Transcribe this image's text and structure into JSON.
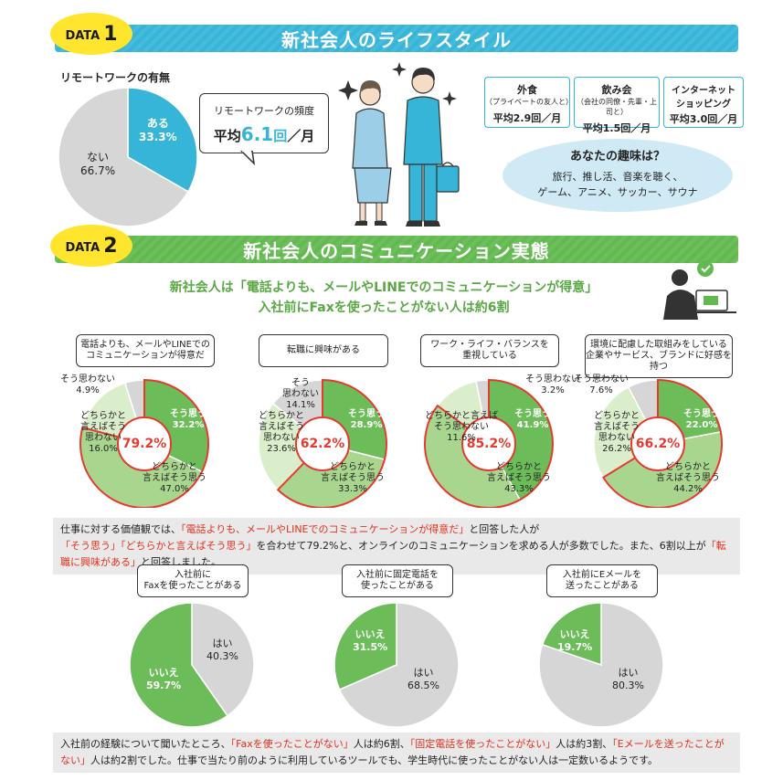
{
  "sections": {
    "data1": {
      "tag_prefix": "DATA",
      "tag_num": "1",
      "title": "新社会人のライフスタイル"
    },
    "data2": {
      "tag_prefix": "DATA",
      "tag_num": "2",
      "title": "新社会人のコミュニケーション実態"
    }
  },
  "remote": {
    "title": "リモートワークの有無",
    "yes_label": "ある",
    "yes_value": "33.3%",
    "no_label": "ない",
    "no_value": "66.7%",
    "freq_title": "リモートワークの頻度",
    "freq_prefix": "平均",
    "freq_num": "6.1",
    "freq_unit": "回",
    "freq_suffix": "／月"
  },
  "monthly": [
    {
      "title": "外食",
      "sub": "（プライベートの友人と）",
      "value": "平均2.9回／月"
    },
    {
      "title": "飲み会",
      "sub": "（会社の同僚・先輩・上司と）",
      "value": "平均1.5回／月"
    },
    {
      "title": "インターネット",
      "sub": "ショッピング",
      "value": "平均3.0回／月"
    }
  ],
  "hobby": {
    "title": "あなたの趣味は？",
    "line1": "旅行、推し活、音楽を聴く、",
    "line2": "ゲーム、アニメ、サッカー、サウナ"
  },
  "headline": {
    "line1": "新社会人は「電話よりも、メールやLINEでのコミュニケーションが得意」",
    "line2": "入社前にFaxを使ったことがない人は約6割"
  },
  "q_pies": [
    {
      "q1": "電話よりも、メールやLINEでの",
      "q2": "コミュニケーションが得意だ",
      "total": "79.2%",
      "a_label": "そう思う",
      "a_val": "32.2%",
      "b1": "どちらかと",
      "b2": "言えばそう思う",
      "b_val": "47.0%",
      "c1": "どちらかと",
      "c2": "言えばそう",
      "c3": "思わない",
      "c_val": "16.0%",
      "d1": "そう思わない",
      "d_val": "4.9%"
    },
    {
      "q1": "転職に興味がある",
      "q2": "",
      "total": "62.2%",
      "a_label": "そう思う",
      "a_val": "28.9%",
      "b1": "どちらかと",
      "b2": "言えばそう思う",
      "b_val": "33.3%",
      "c1": "どちらかと",
      "c2": "言えばそう",
      "c3": "思わない",
      "c_val": "23.6%",
      "d1": "そう",
      "d2": "思わない",
      "d_val": "14.1%"
    },
    {
      "q1": "ワーク・ライフ・バランスを",
      "q2": "重視している",
      "total": "85.2%",
      "a_label": "そう思う",
      "a_val": "41.9%",
      "b1": "どちらかと",
      "b2": "言えばそう思う",
      "b_val": "43.3%",
      "c1": "どちらかと言えば",
      "c2": "そう思わない",
      "c_val": "11.6%",
      "d1": "そう思わない",
      "d_val": "3.2%"
    },
    {
      "q1": "環境に配慮した取組みをしている",
      "q2": "企業やサービス、ブランドに好感を持つ",
      "total": "66.2%",
      "a_label": "そう思う",
      "a_val": "22.0%",
      "b1": "どちらかと",
      "b2": "言えばそう思う",
      "b_val": "44.2%",
      "c1": "どちらかと",
      "c2": "言えばそう",
      "c3": "思わない",
      "c_val": "26.2%",
      "d1": "そう思わない",
      "d_val": "7.6%"
    }
  ],
  "note1": {
    "t1": "仕事に対する価値観では、",
    "r1": "「電話よりも、メールやLINEでのコミュニケーションが得意だ」",
    "t2": "と回答した人が",
    "r2": "「そう思う」「どちらかと言えばそう思う」",
    "t3": "を合わせて79.2%と、オンラインのコミュニケーションを求める人が多数でした。また、6割以上が",
    "r3": "「転職に興味がある」",
    "t4": "と回答しました。"
  },
  "tool_pies": [
    {
      "q1": "入社前に",
      "q2": "Faxを使ったことがある",
      "yes_label": "はい",
      "yes_val": "40.3%",
      "no_label": "いいえ",
      "no_val": "59.7%"
    },
    {
      "q1": "入社前に固定電話を",
      "q2": "使ったことがある",
      "yes_label": "はい",
      "yes_val": "68.5%",
      "no_label": "いいえ",
      "no_val": "31.5%"
    },
    {
      "q1": "入社前にEメールを",
      "q2": "送ったことがある",
      "yes_label": "はい",
      "yes_val": "80.3%",
      "no_label": "いいえ",
      "no_val": "19.7%"
    }
  ],
  "note2": {
    "t1": "入社前の経験について聞いたところ、",
    "r1": "「Faxを使ったことがない」",
    "t2": "人は約6割、",
    "r2": "「固定電話を使ったことがない」",
    "t3": "人は約3割、",
    "r3": "「Eメールを送ったことがない」",
    "t4": "人は約2割でした。仕事で当たり前のように利用しているツールでも、学生時代に使ったことがない人は一定数いるようです。"
  },
  "colors": {
    "blue": "#36b5d8",
    "green": "#62b94f",
    "green_dark": "#6cbd5a",
    "green_mid": "#a9d68f",
    "green_light": "#dbeecc",
    "gray": "#d6d6d6",
    "red": "#e53a2f",
    "yellow": "#ffe52e"
  },
  "chart_data": [
    {
      "type": "pie",
      "title": "リモートワークの有無",
      "categories": [
        "ある",
        "ない"
      ],
      "values": [
        33.3,
        66.7
      ]
    },
    {
      "type": "pie",
      "title": "電話よりも、メールやLINEでのコミュニケーションが得意だ",
      "categories": [
        "そう思う",
        "どちらかと言えばそう思う",
        "どちらかと言えばそう思わない",
        "そう思わない"
      ],
      "values": [
        32.2,
        47.0,
        16.0,
        4.9
      ]
    },
    {
      "type": "pie",
      "title": "転職に興味がある",
      "categories": [
        "そう思う",
        "どちらかと言えばそう思う",
        "どちらかと言えばそう思わない",
        "そう思わない"
      ],
      "values": [
        28.9,
        33.3,
        23.6,
        14.1
      ]
    },
    {
      "type": "pie",
      "title": "ワーク・ライフ・バランスを重視している",
      "categories": [
        "そう思う",
        "どちらかと言えばそう思う",
        "どちらかと言えばそう思わない",
        "そう思わない"
      ],
      "values": [
        41.9,
        43.3,
        11.6,
        3.2
      ]
    },
    {
      "type": "pie",
      "title": "環境に配慮した取組みをしている企業やサービス、ブランドに好感を持つ",
      "categories": [
        "そう思う",
        "どちらかと言えばそう思う",
        "どちらかと言えばそう思わない",
        "そう思わない"
      ],
      "values": [
        22.0,
        44.2,
        26.2,
        7.6
      ]
    },
    {
      "type": "pie",
      "title": "入社前にFaxを使ったことがある",
      "categories": [
        "はい",
        "いいえ"
      ],
      "values": [
        40.3,
        59.7
      ]
    },
    {
      "type": "pie",
      "title": "入社前に固定電話を使ったことがある",
      "categories": [
        "はい",
        "いいえ"
      ],
      "values": [
        68.5,
        31.5
      ]
    },
    {
      "type": "pie",
      "title": "入社前にEメールを送ったことがある",
      "categories": [
        "はい",
        "いいえ"
      ],
      "values": [
        80.3,
        19.7
      ]
    }
  ]
}
